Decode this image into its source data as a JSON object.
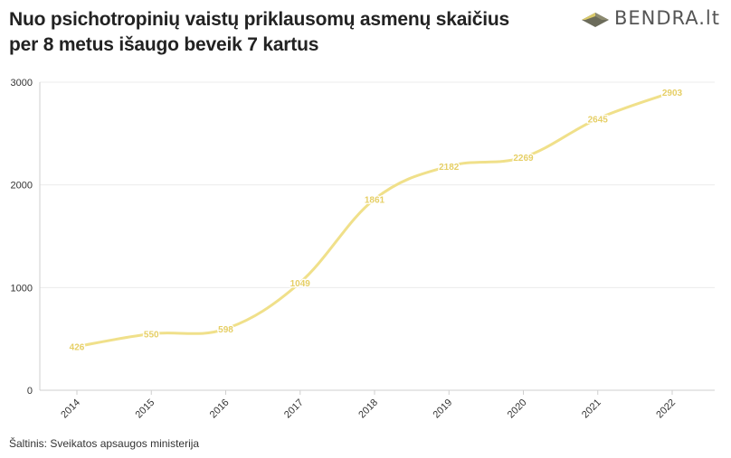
{
  "title_line1": "Nuo psichotropinių vaistų priklausomų asmenų skaičius",
  "title_line2": "per 8 metus išaugo beveik 7 kartus",
  "brand": {
    "text": "BENDRA.lt",
    "icon": "bendra-logo-icon"
  },
  "source": "Šaltinis: Sveikatos apsaugos ministerija",
  "colors": {
    "line": "#f0e08a",
    "label": "#e6cf66",
    "grid": "#ececec",
    "axis": "#333333"
  },
  "chart_data": {
    "type": "line",
    "x": [
      "2014",
      "2015",
      "2016",
      "2017",
      "2018",
      "2019",
      "2020",
      "2021",
      "2022"
    ],
    "series": [
      {
        "values": [
          426,
          550,
          598,
          1049,
          1861,
          2182,
          2269,
          2645,
          2903
        ]
      }
    ],
    "ylim": [
      0,
      3000
    ],
    "yticks": [
      "0",
      "1000",
      "2000",
      "3000"
    ],
    "grid": true,
    "data_labels": true
  }
}
